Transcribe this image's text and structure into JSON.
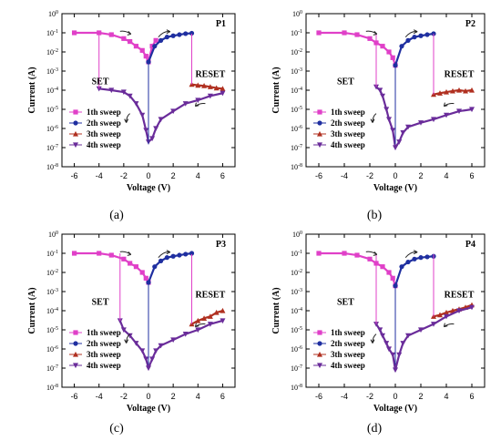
{
  "colors": {
    "sweep1": "#e040c8",
    "sweep2": "#1f2fa0",
    "sweep3": "#b03020",
    "sweep4": "#6a2c9a",
    "axis": "#000000"
  },
  "chart_data": [
    {
      "panel": "(a)",
      "tag": "P1",
      "type": "scatter",
      "xlabel": "Voltage (V)",
      "ylabel": "Current (A)",
      "xlim": [
        -7,
        7
      ],
      "ylim_log10": [
        -8,
        0
      ],
      "xticks": [
        "-6",
        "-4",
        "-2",
        "0",
        "2",
        "4",
        "6"
      ],
      "yticks": [
        "10-8",
        "10-7",
        "10-6",
        "10-5",
        "10-4",
        "10-3",
        "10-2",
        "10-1",
        "100"
      ],
      "annotations": [
        "SET",
        "RESET"
      ],
      "legend": [
        "1th sweep",
        "2th sweep",
        "3th sweep",
        "4th sweep"
      ],
      "series": [
        {
          "name": "1th sweep",
          "x": [
            -6,
            -4,
            -3,
            -2,
            -1.5,
            -1,
            -0.5,
            -0.2,
            0,
            0.3,
            0.6
          ],
          "y": [
            0.1,
            0.1,
            0.08,
            0.05,
            0.035,
            0.02,
            0.012,
            0.006,
            0.003,
            0.02,
            0.04
          ]
        },
        {
          "name": "2th sweep",
          "x": [
            0,
            0.5,
            1,
            1.5,
            2,
            2.5,
            3,
            3.5
          ],
          "y": [
            0.003,
            0.02,
            0.04,
            0.06,
            0.07,
            0.08,
            0.09,
            0.095
          ]
        },
        {
          "name": "3th sweep",
          "x": [
            3.5,
            4,
            4.5,
            5,
            5.5,
            6
          ],
          "y": [
            0.0002,
            0.00018,
            0.00017,
            0.00015,
            0.00013,
            0.00012
          ]
        },
        {
          "name": "4th sweep",
          "x": [
            -4,
            -3,
            -2,
            -1.5,
            -1,
            -0.5,
            -0.2,
            0,
            0.3,
            0.6,
            1,
            2,
            3,
            4,
            5,
            6
          ],
          "y": [
            0.00012,
            0.0001,
            8e-05,
            5e-05,
            2e-05,
            5e-06,
            8e-07,
            2e-07,
            3e-07,
            1e-06,
            3e-06,
            8e-06,
            2e-05,
            3e-05,
            5e-05,
            7e-05
          ]
        }
      ]
    },
    {
      "panel": "(b)",
      "tag": "P2",
      "type": "scatter",
      "xlabel": "Voltage (V)",
      "ylabel": "Current (A)",
      "xlim": [
        -7,
        7
      ],
      "ylim_log10": [
        -8,
        0
      ],
      "xticks": [
        "-6",
        "-4",
        "-2",
        "0",
        "2",
        "4",
        "6"
      ],
      "yticks": [
        "10-8",
        "10-7",
        "10-6",
        "10-5",
        "10-4",
        "10-3",
        "10-2",
        "10-1",
        "100"
      ],
      "annotations": [
        "SET",
        "RESET"
      ],
      "legend": [
        "1th sweep",
        "2th sweep",
        "3th sweep",
        "4th sweep"
      ],
      "series": [
        {
          "name": "1th sweep",
          "x": [
            -6,
            -4,
            -3,
            -2,
            -1.5,
            -1,
            -0.5,
            -0.2,
            0
          ],
          "y": [
            0.1,
            0.1,
            0.08,
            0.05,
            0.03,
            0.02,
            0.01,
            0.005,
            0.002
          ]
        },
        {
          "name": "2th sweep",
          "x": [
            0,
            0.5,
            1,
            1.5,
            2,
            2.5,
            3
          ],
          "y": [
            0.002,
            0.02,
            0.04,
            0.06,
            0.07,
            0.08,
            0.09
          ]
        },
        {
          "name": "3th sweep",
          "x": [
            3,
            3.5,
            4,
            4.5,
            5,
            5.5,
            6
          ],
          "y": [
            6e-05,
            7e-05,
            8e-05,
            9e-05,
            0.0001,
            9e-05,
            0.0001
          ]
        },
        {
          "name": "4th sweep",
          "x": [
            -1.5,
            -1.2,
            -1,
            -0.7,
            -0.5,
            -0.2,
            0,
            0.3,
            0.6,
            1,
            2,
            3,
            4,
            5,
            6
          ],
          "y": [
            0.00015,
            0.0001,
            5e-05,
            1e-05,
            3e-06,
            8e-07,
            1e-07,
            2e-07,
            6e-07,
            1.2e-06,
            2e-06,
            3e-06,
            5e-06,
            8e-06,
            1e-05
          ]
        }
      ]
    },
    {
      "panel": "(c)",
      "tag": "P3",
      "type": "scatter",
      "xlabel": "Voltage (V)",
      "ylabel": "Current (A)",
      "xlim": [
        -7,
        7
      ],
      "ylim_log10": [
        -8,
        0
      ],
      "xticks": [
        "-6",
        "-4",
        "-2",
        "0",
        "2",
        "4",
        "6"
      ],
      "yticks": [
        "10-8",
        "10-7",
        "10-6",
        "10-5",
        "10-4",
        "10-3",
        "10-2",
        "10-1",
        "100"
      ],
      "annotations": [
        "SET",
        "RESET"
      ],
      "legend": [
        "1th sweep",
        "2th sweep",
        "3th sweep",
        "4th sweep"
      ],
      "series": [
        {
          "name": "1th sweep",
          "x": [
            -6,
            -4,
            -3,
            -2,
            -1.5,
            -1,
            -0.5,
            -0.2,
            0
          ],
          "y": [
            0.1,
            0.1,
            0.08,
            0.05,
            0.03,
            0.02,
            0.01,
            0.005,
            0.003
          ]
        },
        {
          "name": "2th sweep",
          "x": [
            0,
            0.5,
            1,
            1.5,
            2,
            2.5,
            3,
            3.5
          ],
          "y": [
            0.003,
            0.02,
            0.04,
            0.06,
            0.07,
            0.08,
            0.09,
            0.1
          ]
        },
        {
          "name": "3th sweep",
          "x": [
            3.5,
            4,
            4.5,
            5,
            5.5,
            6
          ],
          "y": [
            2e-05,
            3e-05,
            4e-05,
            5e-05,
            8e-05,
            0.0001
          ]
        },
        {
          "name": "4th sweep",
          "x": [
            -2.3,
            -2,
            -1.5,
            -1,
            -0.5,
            -0.2,
            0,
            0.3,
            0.6,
            1,
            2,
            3,
            4,
            5,
            6
          ],
          "y": [
            3e-05,
            1e-05,
            5e-06,
            2e-06,
            8e-07,
            3e-07,
            1e-07,
            3e-07,
            8e-07,
            1.5e-06,
            3e-06,
            6e-06,
            1e-05,
            2e-05,
            3e-05
          ]
        }
      ]
    },
    {
      "panel": "(d)",
      "tag": "P4",
      "type": "scatter",
      "xlabel": "Voltage (V)",
      "ylabel": "Current (A)",
      "xlim": [
        -7,
        7
      ],
      "ylim_log10": [
        -8,
        0
      ],
      "xticks": [
        "-6",
        "-4",
        "-2",
        "0",
        "2",
        "4",
        "6"
      ],
      "yticks": [
        "10-8",
        "10-7",
        "10-6",
        "10-5",
        "10-4",
        "10-3",
        "10-2",
        "10-1",
        "100"
      ],
      "annotations": [
        "SET",
        "RESET"
      ],
      "legend": [
        "1th sweep",
        "2th sweep",
        "3th sweep",
        "4th sweep"
      ],
      "series": [
        {
          "name": "1th sweep",
          "x": [
            -6,
            -4,
            -3,
            -2,
            -1.5,
            -1,
            -0.5,
            -0.2,
            0
          ],
          "y": [
            0.1,
            0.1,
            0.08,
            0.05,
            0.03,
            0.02,
            0.01,
            0.005,
            0.002
          ]
        },
        {
          "name": "2th sweep",
          "x": [
            0,
            0.5,
            1,
            1.5,
            2,
            2.5,
            3
          ],
          "y": [
            0.002,
            0.02,
            0.035,
            0.05,
            0.06,
            0.065,
            0.07
          ]
        },
        {
          "name": "3th sweep",
          "x": [
            3,
            3.5,
            4,
            4.5,
            5,
            5.5,
            6
          ],
          "y": [
            5e-05,
            6e-05,
            8e-05,
            0.0001,
            0.00012,
            0.00015,
            0.0002
          ]
        },
        {
          "name": "4th sweep",
          "x": [
            -1.5,
            -1.2,
            -1,
            -0.7,
            -0.5,
            -0.2,
            0,
            0.3,
            0.6,
            1,
            2,
            3,
            4,
            5,
            6
          ],
          "y": [
            2e-05,
            1e-05,
            5e-06,
            2e-06,
            1e-06,
            5e-07,
            8e-08,
            5e-07,
            2e-06,
            5e-06,
            1e-05,
            2e-05,
            5e-05,
            0.0001,
            0.00015
          ]
        }
      ]
    }
  ]
}
